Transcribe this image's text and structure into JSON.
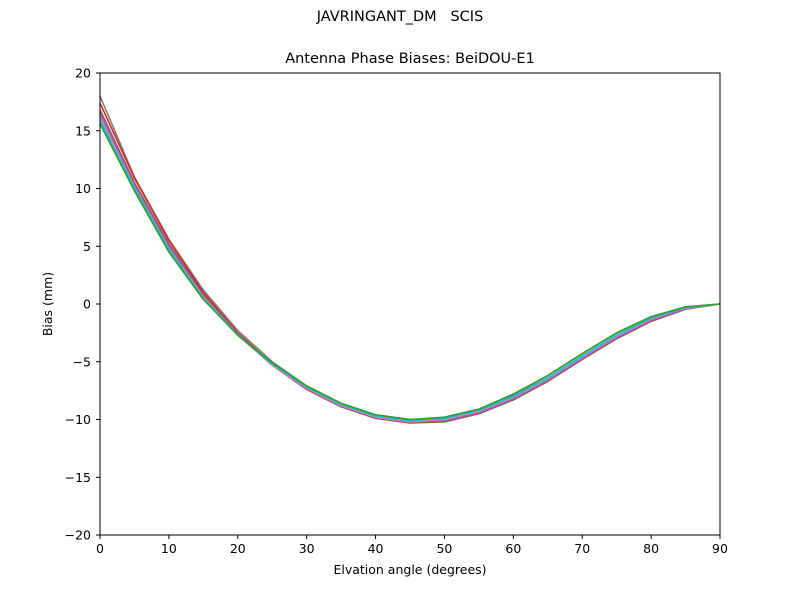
{
  "figure": {
    "suptitle": "JAVRINGANT_DM   SCIS"
  },
  "chart_data": {
    "type": "line",
    "title": "Antenna Phase Biases: BeiDOU-E1",
    "xlabel": "Elvation angle (degrees)",
    "ylabel": "Bias (mm)",
    "xlim": [
      0,
      90
    ],
    "ylim": [
      -20,
      20
    ],
    "xticks": [
      0,
      10,
      20,
      30,
      40,
      50,
      60,
      70,
      80,
      90
    ],
    "yticks": [
      -20,
      -15,
      -10,
      -5,
      0,
      5,
      10,
      15,
      20
    ],
    "ytick_labels": [
      "−20",
      "−15",
      "−10",
      "−5",
      "0",
      "5",
      "10",
      "15",
      "20"
    ],
    "grid": false,
    "legend": "none",
    "x": [
      0,
      5,
      10,
      15,
      20,
      25,
      30,
      35,
      40,
      45,
      50,
      55,
      60,
      65,
      70,
      75,
      80,
      85,
      90
    ],
    "series": [
      {
        "color": "#7f7f7f",
        "values": [
          18.0,
          11.0,
          5.6,
          1.2,
          -2.3,
          -5.0,
          -7.1,
          -8.6,
          -9.6,
          -10.0,
          -9.9,
          -9.2,
          -7.9,
          -6.2,
          -4.3,
          -2.5,
          -1.1,
          -0.25,
          0.0
        ]
      },
      {
        "color": "#d62728",
        "values": [
          17.4,
          10.9,
          5.5,
          1.0,
          -2.5,
          -5.2,
          -7.3,
          -8.8,
          -9.8,
          -10.2,
          -10.1,
          -9.4,
          -8.2,
          -6.6,
          -4.7,
          -2.9,
          -1.4,
          -0.4,
          0.0
        ]
      },
      {
        "color": "#8c564b",
        "values": [
          16.8,
          10.5,
          5.2,
          0.8,
          -2.6,
          -5.3,
          -7.4,
          -8.9,
          -9.9,
          -10.3,
          -10.2,
          -9.5,
          -8.3,
          -6.7,
          -4.8,
          -3.0,
          -1.5,
          -0.45,
          0.0
        ]
      },
      {
        "color": "#9467bd",
        "values": [
          16.5,
          10.3,
          5.0,
          0.7,
          -2.6,
          -5.3,
          -7.3,
          -8.8,
          -9.8,
          -10.2,
          -10.1,
          -9.4,
          -8.2,
          -6.6,
          -4.7,
          -2.9,
          -1.4,
          -0.4,
          0.0
        ]
      },
      {
        "color": "#e377c2",
        "values": [
          16.2,
          10.1,
          4.8,
          0.6,
          -2.7,
          -5.3,
          -7.3,
          -8.8,
          -9.8,
          -10.2,
          -10.0,
          -9.3,
          -8.1,
          -6.5,
          -4.6,
          -2.8,
          -1.3,
          -0.35,
          0.0
        ]
      },
      {
        "color": "#17becf",
        "values": [
          15.9,
          10.0,
          4.7,
          0.5,
          -2.7,
          -5.2,
          -7.2,
          -8.7,
          -9.7,
          -10.1,
          -9.9,
          -9.2,
          -8.0,
          -6.4,
          -4.5,
          -2.7,
          -1.2,
          -0.3,
          0.0
        ]
      },
      {
        "color": "#2ca02c",
        "values": [
          15.6,
          9.8,
          4.5,
          0.4,
          -2.7,
          -5.1,
          -7.1,
          -8.6,
          -9.6,
          -10.0,
          -9.8,
          -9.1,
          -7.8,
          -6.2,
          -4.3,
          -2.5,
          -1.1,
          -0.25,
          0.0
        ]
      }
    ]
  }
}
